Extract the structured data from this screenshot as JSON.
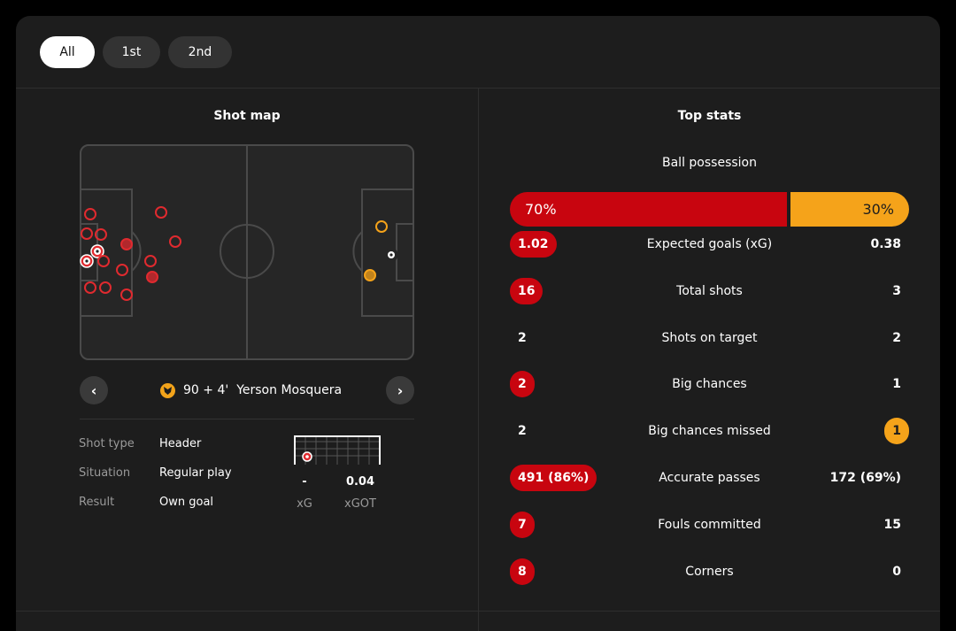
{
  "periods": [
    "All",
    "1st",
    "2nd"
  ],
  "shot_map": {
    "title": "Shot map",
    "selected_shot": {
      "minute": "90 + 4'",
      "player": "Yerson Mosquera",
      "details": [
        {
          "label": "Shot type",
          "value": "Header"
        },
        {
          "label": "Situation",
          "value": "Regular play"
        },
        {
          "label": "Result",
          "value": "Own goal"
        }
      ],
      "xg": "-",
      "xgot": "0.04",
      "xg_label": "xG",
      "xgot_label": "xGOT"
    },
    "colors": {
      "home": "#e02a2f",
      "away": "#f5a31a"
    }
  },
  "top_stats": {
    "title": "Top stats",
    "possession": {
      "label": "Ball possession",
      "home": "70%",
      "away": "30%",
      "home_value": 70,
      "away_value": 30
    },
    "rows": [
      {
        "label": "Expected goals (xG)",
        "home": "1.02",
        "away": "0.38",
        "highlight": "home"
      },
      {
        "label": "Total shots",
        "home": "16",
        "away": "3",
        "highlight": "home"
      },
      {
        "label": "Shots on target",
        "home": "2",
        "away": "2",
        "highlight": "none"
      },
      {
        "label": "Big chances",
        "home": "2",
        "away": "1",
        "highlight": "home"
      },
      {
        "label": "Big chances missed",
        "home": "2",
        "away": "1",
        "highlight": "away"
      },
      {
        "label": "Accurate passes",
        "home": "491 (86%)",
        "away": "172 (69%)",
        "highlight": "home"
      },
      {
        "label": "Fouls committed",
        "home": "7",
        "away": "15",
        "highlight": "home"
      },
      {
        "label": "Corners",
        "home": "8",
        "away": "0",
        "highlight": "home"
      }
    ],
    "colors": {
      "home": "#c8050f",
      "away": "#f5a31a"
    }
  }
}
